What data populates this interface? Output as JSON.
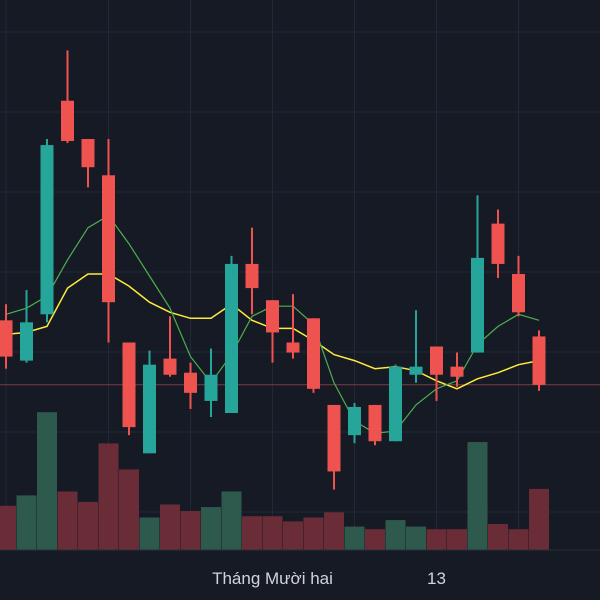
{
  "chart_data": {
    "type": "candlestick",
    "colors": {
      "background": "#161a25",
      "grid": "#232838",
      "up": "#26a69a",
      "down": "#ef5350",
      "volume_up": "#2e5a4d",
      "volume_down": "#6a2c36",
      "ma_fast": "#4caf50",
      "ma_slow": "#ffeb3b",
      "price_line": "#7a3c44",
      "axis_text": "#d1d4dc"
    },
    "price_range": [
      -0.4,
      26.9
    ],
    "volume_range": [
      0,
      140
    ],
    "x_ticks": [
      {
        "index": 13,
        "label": "Tháng Mười hai"
      },
      {
        "index": 21,
        "label": "13"
      }
    ],
    "price_line": 7.8,
    "candles": [
      {
        "open": 11.0,
        "high": 11.8,
        "low": 8.6,
        "close": 9.2
      },
      {
        "open": 9.0,
        "high": 12.5,
        "low": 8.9,
        "close": 10.9
      },
      {
        "open": 11.3,
        "high": 20.0,
        "low": 10.9,
        "close": 19.7
      },
      {
        "open": 21.9,
        "high": 24.4,
        "low": 19.8,
        "close": 19.9
      },
      {
        "open": 20.0,
        "high": 20.0,
        "low": 17.6,
        "close": 18.6
      },
      {
        "open": 18.2,
        "high": 20.0,
        "low": 9.9,
        "close": 11.9
      },
      {
        "open": 9.9,
        "high": 9.9,
        "low": 5.3,
        "close": 5.7
      },
      {
        "open": 4.4,
        "high": 9.5,
        "low": 4.4,
        "close": 8.8
      },
      {
        "open": 9.1,
        "high": 11.2,
        "low": 8.2,
        "close": 8.3
      },
      {
        "open": 8.4,
        "high": 8.9,
        "low": 6.6,
        "close": 7.4
      },
      {
        "open": 7.0,
        "high": 9.6,
        "low": 6.2,
        "close": 8.3
      },
      {
        "open": 6.4,
        "high": 14.2,
        "low": 6.4,
        "close": 13.8
      },
      {
        "open": 13.8,
        "high": 15.6,
        "low": 11.3,
        "close": 12.6
      },
      {
        "open": 12.0,
        "high": 12.0,
        "low": 8.9,
        "close": 10.4
      },
      {
        "open": 9.9,
        "high": 12.3,
        "low": 9.1,
        "close": 9.4
      },
      {
        "open": 11.1,
        "high": 11.1,
        "low": 7.4,
        "close": 7.6
      },
      {
        "open": 6.8,
        "high": 6.8,
        "low": 2.6,
        "close": 3.5
      },
      {
        "open": 5.3,
        "high": 6.9,
        "low": 4.9,
        "close": 6.7
      },
      {
        "open": 6.8,
        "high": 6.8,
        "low": 4.8,
        "close": 5.0
      },
      {
        "open": 5.0,
        "high": 8.8,
        "low": 5.0,
        "close": 8.7
      },
      {
        "open": 8.3,
        "high": 11.5,
        "low": 7.9,
        "close": 8.7
      },
      {
        "open": 9.7,
        "high": 9.7,
        "low": 7.0,
        "close": 8.3
      },
      {
        "open": 8.7,
        "high": 9.4,
        "low": 7.7,
        "close": 8.2
      },
      {
        "open": 9.4,
        "high": 17.2,
        "low": 9.4,
        "close": 14.1
      },
      {
        "open": 15.8,
        "high": 16.5,
        "low": 13.1,
        "close": 13.8
      },
      {
        "open": 13.3,
        "high": 14.2,
        "low": 11.2,
        "close": 11.4
      },
      {
        "open": 10.2,
        "high": 10.5,
        "low": 7.5,
        "close": 7.8
      }
    ],
    "volumes": [
      34,
      42,
      106,
      45,
      37,
      82,
      62,
      25,
      35,
      30,
      33,
      45,
      26,
      26,
      22,
      25,
      29,
      18,
      16,
      23,
      18,
      16,
      16,
      83,
      20,
      16,
      47
    ],
    "ma_fast": [
      11.3,
      11.6,
      12.2,
      14.0,
      15.6,
      16.2,
      14.8,
      13.2,
      11.6,
      9.2,
      7.9,
      9.3,
      11.2,
      11.7,
      11.7,
      10.8,
      7.9,
      6.0,
      5.4,
      5.5,
      6.8,
      7.6,
      8.0,
      9.8,
      10.7,
      11.3,
      11.0
    ],
    "ma_slow": [
      10.3,
      10.4,
      10.7,
      12.6,
      13.3,
      13.3,
      12.7,
      11.9,
      11.4,
      11.1,
      11.1,
      11.8,
      11.0,
      10.6,
      10.6,
      10.0,
      9.3,
      9.0,
      8.6,
      8.7,
      8.5,
      8.0,
      7.6,
      8.1,
      8.4,
      8.8,
      9.0
    ]
  }
}
